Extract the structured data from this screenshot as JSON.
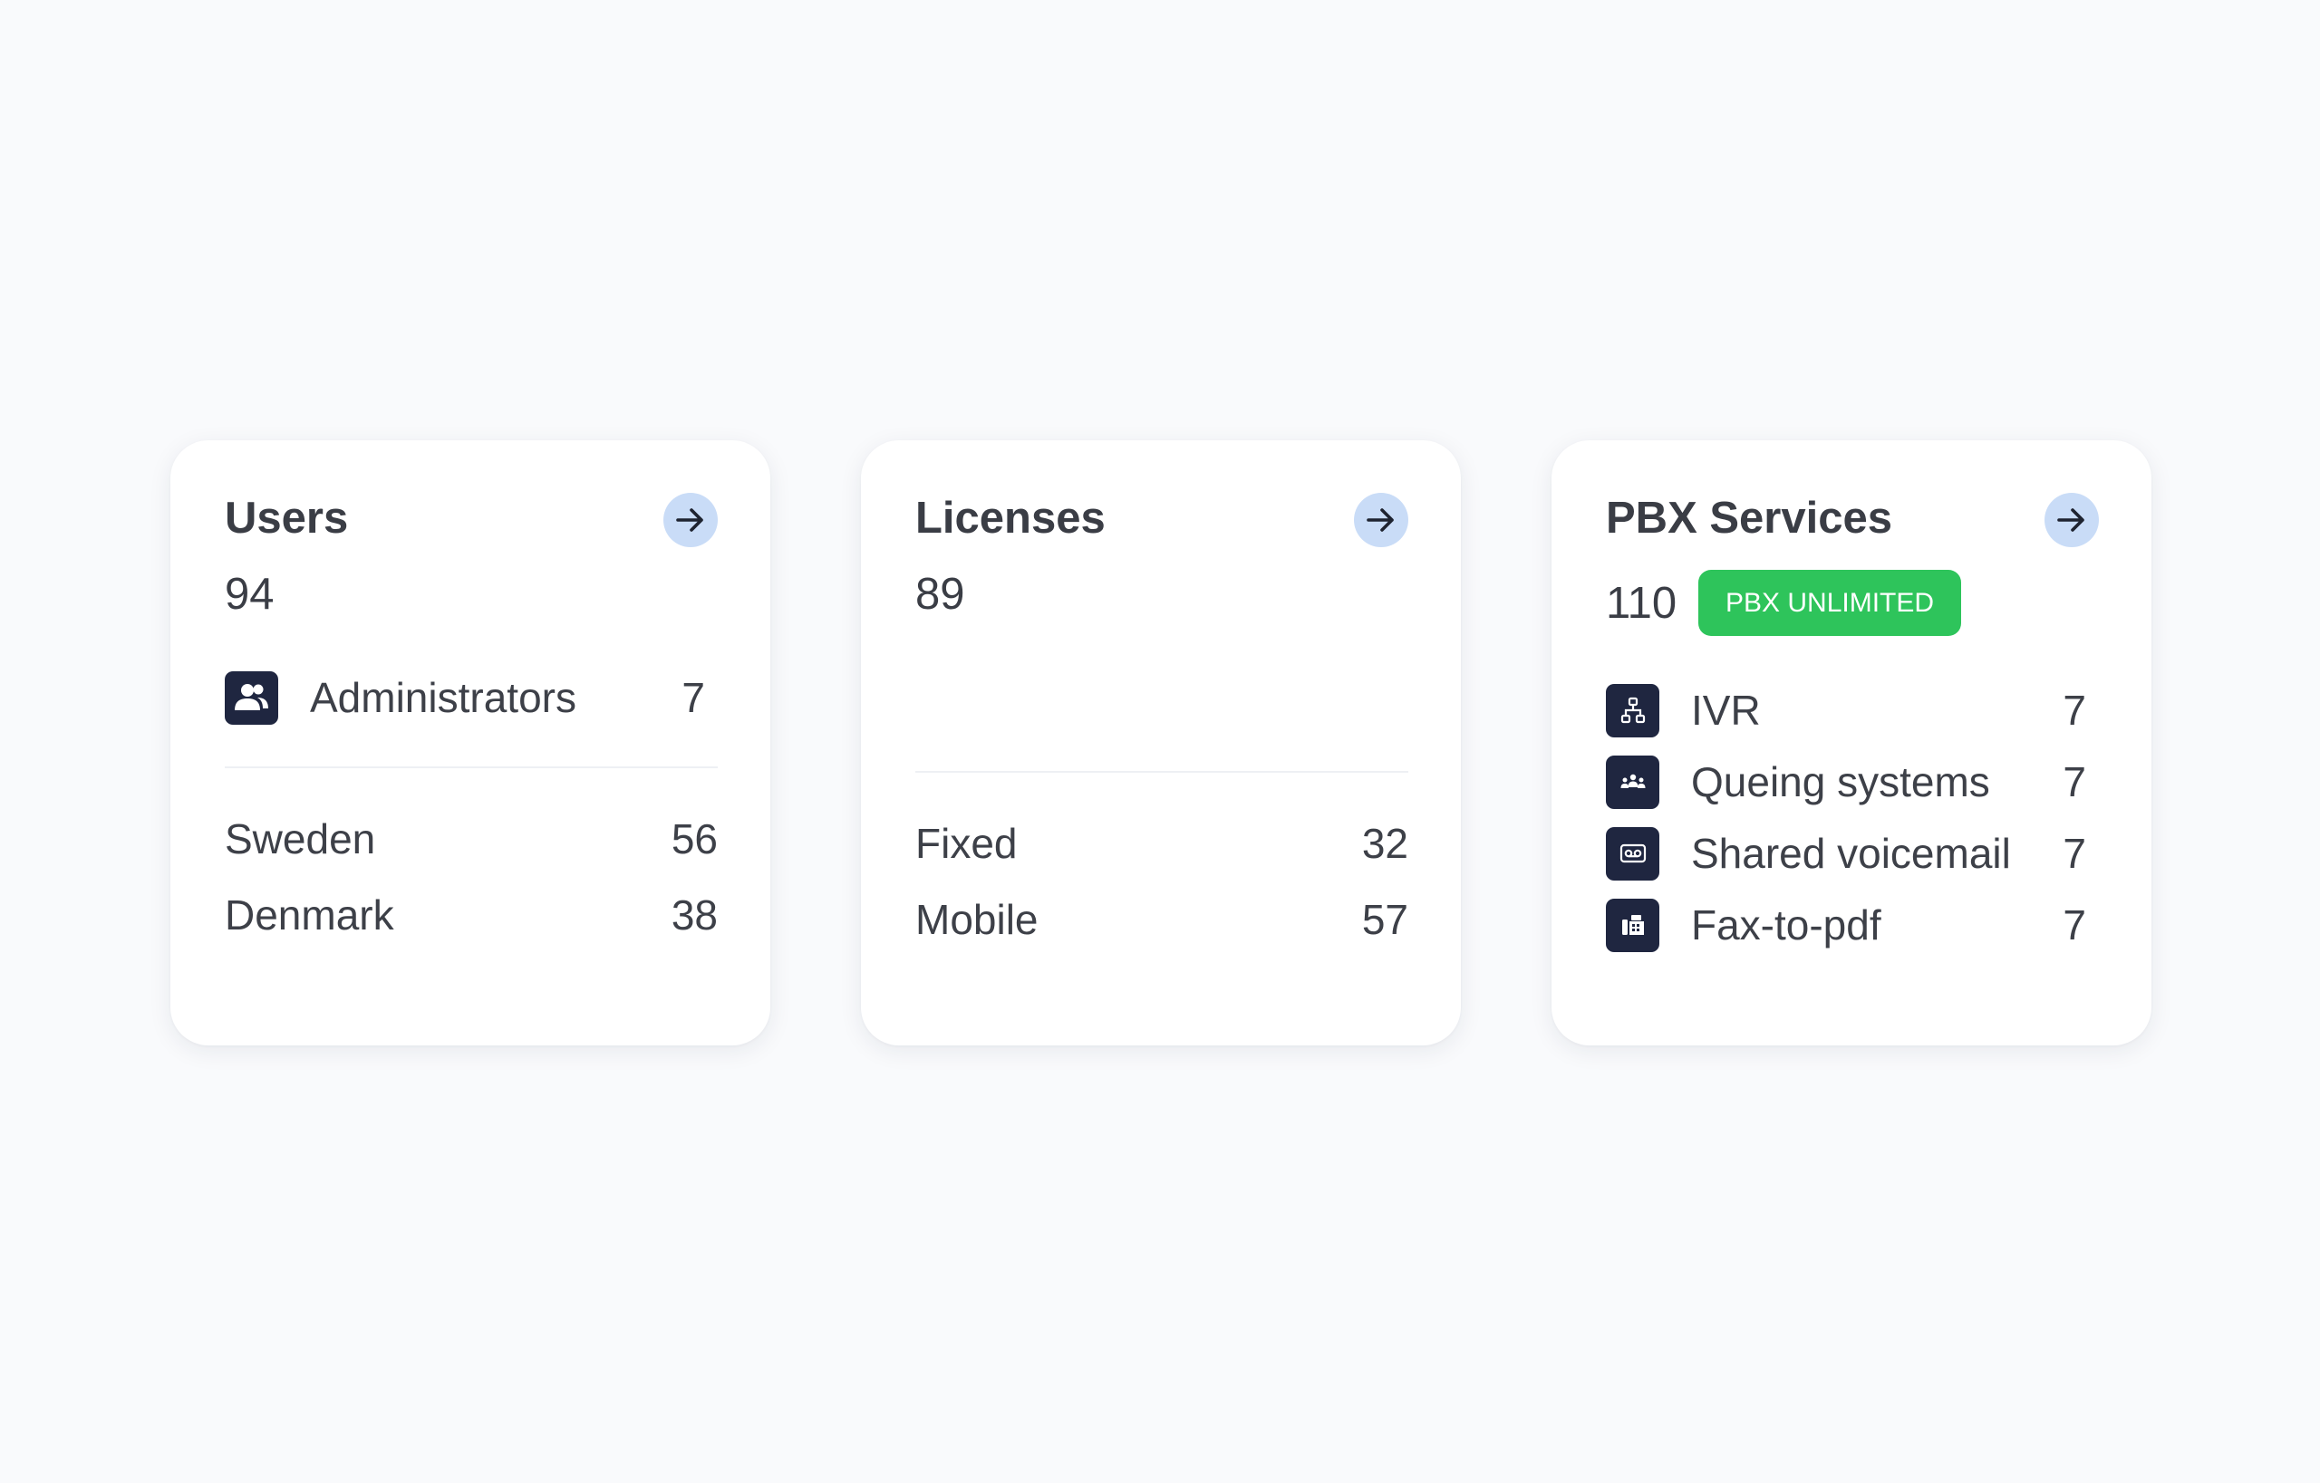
{
  "users": {
    "title": "Users",
    "total": "94",
    "admin": {
      "label": "Administrators",
      "value": "7",
      "icon": "users-icon"
    },
    "rows": [
      {
        "label": "Sweden",
        "value": "56"
      },
      {
        "label": "Denmark",
        "value": "38"
      }
    ]
  },
  "licenses": {
    "title": "Licenses",
    "total": "89",
    "rows": [
      {
        "label": "Fixed",
        "value": "32"
      },
      {
        "label": "Mobile",
        "value": "57"
      }
    ]
  },
  "pbx": {
    "title": "PBX Services",
    "total": "110",
    "badge": "PBX UNLIMITED",
    "rows": [
      {
        "label": "IVR",
        "value": "7",
        "icon": "sitemap-icon"
      },
      {
        "label": "Queing systems",
        "value": "7",
        "icon": "group-icon"
      },
      {
        "label": "Shared voicemail",
        "value": "7",
        "icon": "voicemail-icon"
      },
      {
        "label": "Fax-to-pdf",
        "value": "7",
        "icon": "fax-icon"
      }
    ]
  },
  "colors": {
    "background": "#f9fafc",
    "card": "#ffffff",
    "arrow_button": "#c9dcf7",
    "icon_tile": "#1f2640",
    "badge": "#2ec45b",
    "text": "#3d4048"
  }
}
